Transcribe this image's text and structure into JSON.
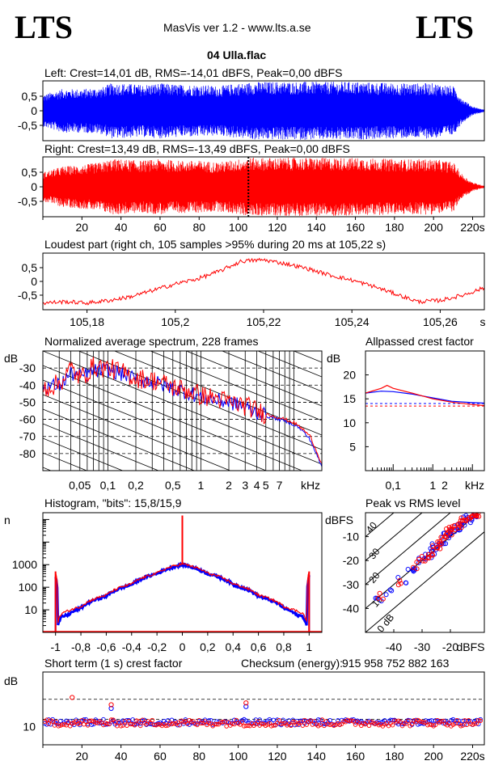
{
  "header": {
    "logo_left": "LTS",
    "logo_right": "LTS",
    "app_title": "MasVis ver 1.2 - www.lts.a.se",
    "file_name": "04 Ulla.flac"
  },
  "colors": {
    "left": "#0000ff",
    "right": "#ff0000",
    "axis": "#000000"
  },
  "chart_data": [
    {
      "id": "left-waveform",
      "type": "area",
      "title": "Left: Crest=14,01 dB, RMS=-14,01 dBFS, Peak=0,00 dBFS",
      "series": [
        {
          "name": "Left",
          "color": "#0000ff"
        }
      ],
      "envelope": {
        "x": [
          0,
          5,
          10,
          20,
          30,
          35,
          40,
          50,
          60,
          70,
          80,
          90,
          100,
          105,
          106,
          120,
          140,
          160,
          180,
          200,
          210,
          215,
          220,
          225
        ],
        "amplitude": [
          0.55,
          0.65,
          0.75,
          0.75,
          0.8,
          0.95,
          0.95,
          0.9,
          0.95,
          0.9,
          0.9,
          0.85,
          0.95,
          0.95,
          1.0,
          1.0,
          1.0,
          1.0,
          0.95,
          0.95,
          0.85,
          0.4,
          0.15,
          0.05
        ]
      },
      "ylim": [
        -1,
        1
      ],
      "yticks": [
        "0,5",
        "0",
        "-0,5"
      ],
      "xlim": [
        0,
        226
      ]
    },
    {
      "id": "right-waveform",
      "type": "area",
      "title": "Right: Crest=13,49 dB, RMS=-13,49 dBFS, Peak=0,00 dBFS",
      "series": [
        {
          "name": "Right",
          "color": "#ff0000"
        }
      ],
      "envelope": {
        "x": [
          0,
          5,
          10,
          20,
          30,
          35,
          40,
          50,
          60,
          70,
          80,
          90,
          100,
          105,
          106,
          120,
          140,
          160,
          180,
          200,
          210,
          215,
          220,
          225
        ],
        "amplitude": [
          0.5,
          0.6,
          0.7,
          0.75,
          0.85,
          0.95,
          0.95,
          0.9,
          0.95,
          0.9,
          0.9,
          0.85,
          0.95,
          1.0,
          1.0,
          1.0,
          1.0,
          1.0,
          0.95,
          0.95,
          0.85,
          0.4,
          0.15,
          0.05
        ]
      },
      "marker_x": 105.22,
      "ylim": [
        -1,
        1
      ],
      "yticks": [
        "0,5",
        "0",
        "-0,5"
      ],
      "xlim": [
        0,
        226
      ],
      "xticks": [
        "20",
        "40",
        "60",
        "80",
        "100",
        "120",
        "140",
        "160",
        "180",
        "200",
        "220s"
      ],
      "xtick_values": [
        20,
        40,
        60,
        80,
        100,
        120,
        140,
        160,
        180,
        200,
        220
      ]
    },
    {
      "id": "loudest-part",
      "type": "line",
      "title": "Loudest part (right ch, 105 samples >95% during 20 ms at 105,22 s)",
      "series": [
        {
          "name": "Right",
          "color": "#ff0000",
          "x": [
            105.17,
            105.175,
            105.18,
            105.185,
            105.19,
            105.195,
            105.2,
            105.205,
            105.21,
            105.215,
            105.22,
            105.225,
            105.23,
            105.235,
            105.24,
            105.245,
            105.25,
            105.255,
            105.26,
            105.265,
            105.27
          ],
          "y": [
            -0.85,
            -0.8,
            -0.85,
            -0.75,
            -0.6,
            -0.35,
            -0.1,
            0.1,
            0.4,
            0.8,
            0.85,
            0.7,
            0.5,
            0.25,
            0.05,
            -0.2,
            -0.5,
            -0.8,
            -0.75,
            -0.55,
            -0.25
          ]
        }
      ],
      "ylim": [
        -1,
        1
      ],
      "yticks": [
        "0,5",
        "0",
        "-0,5"
      ],
      "xlim": [
        105.17,
        105.27
      ],
      "xticks": [
        "105,18",
        "105,2",
        "105,22",
        "105,24",
        "105,26"
      ],
      "xtick_values": [
        105.18,
        105.2,
        105.22,
        105.24,
        105.26
      ],
      "xunit": "s"
    },
    {
      "id": "avg-spectrum",
      "type": "line",
      "title": "Normalized average spectrum, 228 frames",
      "ylabel": "dB",
      "series": [
        {
          "name": "Left",
          "color": "#0000ff",
          "x": [
            0.02,
            0.03,
            0.04,
            0.05,
            0.07,
            0.1,
            0.15,
            0.2,
            0.3,
            0.5,
            0.7,
            1,
            1.5,
            2,
            3,
            4,
            5,
            7,
            10,
            12,
            15,
            18,
            20
          ],
          "y": [
            -41,
            -40,
            -33,
            -35,
            -32,
            -31,
            -34,
            -37,
            -38,
            -42,
            -44,
            -47,
            -49,
            -50,
            -53,
            -56,
            -58,
            -60,
            -63,
            -66,
            -72,
            -82,
            -88
          ]
        },
        {
          "name": "Right",
          "color": "#ff0000",
          "x": [
            0.02,
            0.03,
            0.04,
            0.05,
            0.07,
            0.1,
            0.15,
            0.2,
            0.3,
            0.5,
            0.7,
            1,
            1.5,
            2,
            3,
            4,
            5,
            7,
            10,
            12,
            15,
            18,
            20
          ],
          "y": [
            -42,
            -39,
            -30,
            -36,
            -29,
            -30,
            -33,
            -36,
            -37,
            -41,
            -43,
            -46,
            -48,
            -50,
            -52,
            -55,
            -57,
            -59,
            -62,
            -65,
            -70,
            -80,
            -86
          ]
        }
      ],
      "ylim": [
        -90,
        -20
      ],
      "yticks": [
        "-30",
        "-40",
        "-50",
        "-60",
        "-70",
        "-80"
      ],
      "ytick_values": [
        -30,
        -40,
        -50,
        -60,
        -70,
        -80
      ],
      "xticks": [
        "0,05",
        "0,1",
        "0,2",
        "0,5",
        "1",
        "2",
        "3",
        "4",
        "5",
        "7",
        "kHz"
      ],
      "xtick_values": [
        0.05,
        0.1,
        0.2,
        0.5,
        1,
        2,
        3,
        4,
        5,
        7
      ],
      "xlim": [
        0.02,
        20
      ],
      "xscale": "log"
    },
    {
      "id": "allpassed-crest",
      "type": "line",
      "title": "Allpassed crest factor",
      "ylabel": "dB",
      "series": [
        {
          "name": "Left",
          "color": "#0000ff",
          "x": [
            0.02,
            0.05,
            0.1,
            0.3,
            1,
            3,
            10,
            20
          ],
          "y": [
            16.2,
            16.6,
            16.5,
            16.0,
            15.2,
            14.5,
            14.2,
            14.1
          ],
          "ref": 14.01
        },
        {
          "name": "Right",
          "color": "#ff0000",
          "x": [
            0.02,
            0.05,
            0.07,
            0.1,
            0.3,
            1,
            3,
            10,
            20
          ],
          "y": [
            16.2,
            17.2,
            17.8,
            17.2,
            16.2,
            15.0,
            14.3,
            13.8,
            13.6
          ],
          "ref": 13.49
        }
      ],
      "ylim": [
        0,
        25
      ],
      "yticks": [
        "20",
        "15",
        "10",
        "5"
      ],
      "ytick_values": [
        20,
        15,
        10,
        5
      ],
      "xticks": [
        "0,1",
        "1",
        "2",
        "kHz"
      ],
      "xtick_values": [
        0.1,
        1,
        2
      ],
      "xlim": [
        0.02,
        20
      ],
      "xscale": "log"
    },
    {
      "id": "histogram",
      "type": "line",
      "title": "Histogram, \"bits\": 15,8/15,9",
      "ylabel": "n",
      "series": [
        {
          "name": "Left",
          "color": "#0000ff",
          "x": [
            -1,
            -0.98,
            -0.95,
            -0.9,
            -0.8,
            -0.6,
            -0.4,
            -0.2,
            0,
            0.2,
            0.4,
            0.6,
            0.8,
            0.9,
            0.95,
            0.98,
            1
          ],
          "y": [
            300,
            2,
            5,
            6,
            12,
            40,
            130,
            400,
            1000,
            400,
            130,
            40,
            12,
            6,
            5,
            2,
            300
          ]
        },
        {
          "name": "Right",
          "color": "#ff0000",
          "x": [
            -1,
            -0.98,
            -0.95,
            -0.9,
            -0.8,
            -0.6,
            -0.4,
            -0.2,
            0,
            0.2,
            0.4,
            0.6,
            0.8,
            0.9,
            0.95,
            0.98,
            1
          ],
          "y": [
            500,
            3,
            7,
            9,
            14,
            45,
            140,
            420,
            1100,
            420,
            140,
            45,
            14,
            9,
            7,
            3,
            500
          ]
        }
      ],
      "center_spike": 150000,
      "yscale": "log",
      "ylim": [
        1,
        200000
      ],
      "yticks": [
        "1000",
        "100",
        "10"
      ],
      "ytick_values": [
        1000,
        100,
        10
      ],
      "xlim": [
        -1.1,
        1.1
      ],
      "xticks": [
        "-1",
        "-0,8",
        "-0,6",
        "-0,4",
        "-0,2",
        "0",
        "0,2",
        "0,4",
        "0,6",
        "0,8",
        "1"
      ],
      "xtick_values": [
        -1,
        -0.8,
        -0.6,
        -0.4,
        -0.2,
        0,
        0.2,
        0.4,
        0.6,
        0.8,
        1
      ]
    },
    {
      "id": "peak-vs-rms",
      "type": "scatter",
      "title": "Peak vs RMS level",
      "ylabel": "dBFS",
      "xlabel": "dBFS",
      "diagonal_labels": [
        "40",
        "30",
        "20",
        "10",
        "0 dB"
      ],
      "diagonal_offsets": [
        40,
        30,
        20,
        10,
        0
      ],
      "series": [
        {
          "name": "Left",
          "color": "#0000ff",
          "x": [
            -45,
            -42,
            -37,
            -34,
            -32,
            -30,
            -28,
            -27,
            -26,
            -25,
            -24,
            -23,
            -22,
            -21,
            -20,
            -19,
            -18,
            -17,
            -16,
            -15,
            -14,
            -13,
            -12,
            -11
          ],
          "y": [
            -37,
            -33,
            -28,
            -24,
            -23,
            -20,
            -18,
            -16,
            -15,
            -14,
            -13,
            -12,
            -11,
            -10,
            -9,
            -8,
            -7,
            -6,
            -5,
            -4,
            -3,
            -2,
            -1,
            -0.5
          ]
        },
        {
          "name": "Right",
          "color": "#ff0000",
          "x": [
            -44,
            -38,
            -33,
            -30,
            -29,
            -27,
            -26,
            -25,
            -24,
            -23,
            -22,
            -21,
            -20,
            -19,
            -18,
            -17,
            -16,
            -15,
            -14,
            -13,
            -12,
            -11,
            -10
          ],
          "y": [
            -35,
            -29,
            -22,
            -19,
            -18,
            -17,
            -15,
            -14,
            -12,
            -11,
            -10,
            -9,
            -8,
            -7,
            -6,
            -5,
            -4,
            -3,
            -2,
            -1.5,
            -1,
            -0.5,
            -0.2
          ]
        }
      ],
      "xlim": [
        -50,
        -8
      ],
      "ylim": [
        -50,
        0
      ],
      "xticks": [
        "-40",
        "-30",
        "-20"
      ],
      "xtick_values": [
        -40,
        -30,
        -20
      ],
      "yticks": [
        "-10",
        "-20",
        "-30",
        "-40"
      ],
      "ytick_values": [
        -10,
        -20,
        -30,
        -40
      ]
    },
    {
      "id": "short-term-crest",
      "type": "scatter",
      "title": "Short term (1 s) crest factor",
      "checksum_label": "Checksum (energy):",
      "checksum_value": "915 958 752 882 163",
      "ylabel": "dB",
      "yticks": [
        "10"
      ],
      "ytick_values": [
        10
      ],
      "ylim": [
        5,
        25
      ],
      "ref_lines": [
        17.5,
        12
      ],
      "series": [
        {
          "name": "Left",
          "color": "#0000ff",
          "base": 11.2,
          "spread": 1.6,
          "outliers": [
            [
              35,
              15
            ],
            [
              104,
              15.5
            ]
          ]
        },
        {
          "name": "Right",
          "color": "#ff0000",
          "base": 11.0,
          "spread": 1.8,
          "outliers": [
            [
              15,
              18
            ],
            [
              35,
              16
            ],
            [
              104,
              16.5
            ]
          ]
        }
      ],
      "xlim": [
        0,
        226
      ],
      "xticks": [
        "20",
        "40",
        "60",
        "80",
        "100",
        "120",
        "140",
        "160",
        "180",
        "200",
        "220s"
      ],
      "xtick_values": [
        20,
        40,
        60,
        80,
        100,
        120,
        140,
        160,
        180,
        200,
        220
      ]
    }
  ]
}
